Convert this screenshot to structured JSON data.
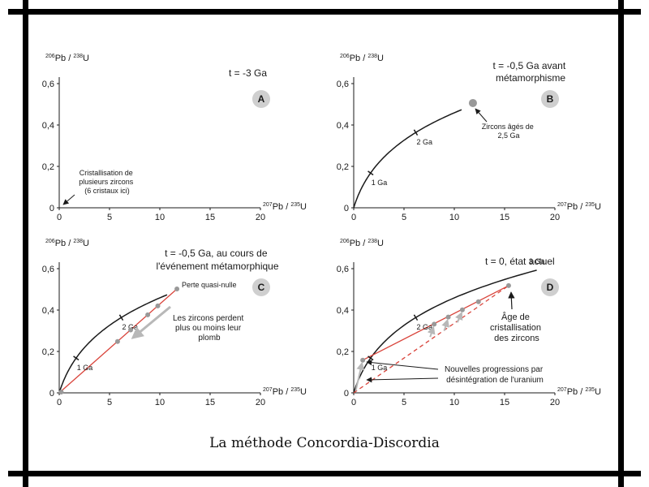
{
  "caption": "La méthode Concordia-Discordia",
  "colors": {
    "concordia": "#1a1a1a",
    "discordia": "#d9443b",
    "zircon": "#999999",
    "arrow": "#b8b8b8",
    "badge": "#cfcfcf"
  },
  "chart_data": [
    {
      "type": "line",
      "panel": "A",
      "title": "t = -3 Ga",
      "ylabel": {
        "sup1": "206",
        "main1": "Pb / ",
        "sup2": "238",
        "main2": "U"
      },
      "xlabel": {
        "sup1": "207",
        "main1": "Pb / ",
        "sup2": "235",
        "main2": "U"
      },
      "xlim": [
        0,
        20
      ],
      "ylim": [
        0,
        0.6
      ],
      "xticks": [
        0,
        5,
        10,
        15,
        20
      ],
      "yticks": [
        0,
        0.2,
        0.4,
        0.6
      ],
      "xtick_labels": [
        "0",
        "5",
        "10",
        "15",
        "20"
      ],
      "ytick_labels": [
        "0",
        "0,2",
        "0,4",
        "0,6"
      ],
      "concordia_max_ga": 0,
      "age_marks": [],
      "points": [],
      "discordia": [],
      "annotations": [
        {
          "lines": [
            "Cristallisation de",
            "plusieurs zircons",
            "(6 cristaux ici)"
          ]
        }
      ]
    },
    {
      "type": "line",
      "panel": "B",
      "title": "t = -0,5 Ga avant",
      "title2": "métamorphisme",
      "ylabel": {
        "sup1": "206",
        "main1": "Pb / ",
        "sup2": "238",
        "main2": "U"
      },
      "xlabel": {
        "sup1": "207",
        "main1": "Pb / ",
        "sup2": "235",
        "main2": "U"
      },
      "xlim": [
        0,
        20
      ],
      "ylim": [
        0,
        0.6
      ],
      "xticks": [
        0,
        5,
        10,
        15,
        20
      ],
      "yticks": [
        0,
        0.2,
        0.4,
        0.6
      ],
      "xtick_labels": [
        "0",
        "5",
        "10",
        "15",
        "20"
      ],
      "ytick_labels": [
        "0",
        "0,2",
        "0,4",
        "0,6"
      ],
      "concordia_max_ga": 2.5,
      "age_marks": [
        {
          "t": 1,
          "label": "1 Ga"
        },
        {
          "t": 2,
          "label": "2 Ga"
        }
      ],
      "points": [
        {
          "x": 11.85,
          "y": 0.506,
          "r": 5
        }
      ],
      "discordia": [],
      "annotations": [
        {
          "lines": [
            "Zircons âgés de",
            "2,5 Ga"
          ]
        }
      ]
    },
    {
      "type": "line",
      "panel": "C",
      "title": "t = -0,5 Ga, au cours de",
      "title2": "l'événement métamorphique",
      "ylabel": {
        "sup1": "206",
        "main1": "Pb / ",
        "sup2": "238",
        "main2": "U"
      },
      "xlabel": {
        "sup1": "207",
        "main1": "Pb / ",
        "sup2": "235",
        "main2": "U"
      },
      "xlim": [
        0,
        20
      ],
      "ylim": [
        0,
        0.6
      ],
      "xticks": [
        0,
        5,
        10,
        15,
        20
      ],
      "yticks": [
        0,
        0.2,
        0.4,
        0.6
      ],
      "xtick_labels": [
        "0",
        "5",
        "10",
        "15",
        "20"
      ],
      "ytick_labels": [
        "0",
        "0,2",
        "0,4",
        "0,6"
      ],
      "concordia_max_ga": 2.5,
      "age_marks": [
        {
          "t": 1,
          "label": "1 Ga"
        },
        {
          "t": 2,
          "label": "2 Ga"
        }
      ],
      "points": [
        {
          "x": 0.2,
          "y": 0.004,
          "r": 3
        },
        {
          "x": 5.8,
          "y": 0.248,
          "r": 3
        },
        {
          "x": 7.1,
          "y": 0.304,
          "r": 3
        },
        {
          "x": 8.8,
          "y": 0.377,
          "r": 3
        },
        {
          "x": 9.8,
          "y": 0.42,
          "r": 3
        },
        {
          "x": 11.7,
          "y": 0.502,
          "r": 3
        }
      ],
      "discordia": [
        {
          "x1": 0,
          "y1": 0,
          "x2": 11.7,
          "y2": 0.502,
          "dash": false
        }
      ],
      "annotations": [
        {
          "lines": [
            "Perte quasi-nulle"
          ]
        },
        {
          "lines": [
            "Les zircons perdent",
            "plus ou moins leur",
            "plomb"
          ]
        }
      ]
    },
    {
      "type": "line",
      "panel": "D",
      "title": "t = 0, état actuel",
      "ylabel": {
        "sup1": "206",
        "main1": "Pb / ",
        "sup2": "238",
        "main2": "U"
      },
      "xlabel": {
        "sup1": "207",
        "main1": "Pb / ",
        "sup2": "235",
        "main2": "U"
      },
      "xlim": [
        0,
        20
      ],
      "ylim": [
        0,
        0.6
      ],
      "xticks": [
        0,
        5,
        10,
        15,
        20
      ],
      "yticks": [
        0,
        0.2,
        0.4,
        0.6
      ],
      "xtick_labels": [
        "0",
        "5",
        "10",
        "15",
        "20"
      ],
      "ytick_labels": [
        "0",
        "0,2",
        "0,4",
        "0,6"
      ],
      "concordia_max_ga": 3,
      "age_marks": [
        {
          "t": 1,
          "label": "1 Ga"
        },
        {
          "t": 2,
          "label": "2 Ga"
        },
        {
          "t": 3,
          "label": "3 Ga"
        }
      ],
      "points": [
        {
          "x": 0.9,
          "y": 0.158,
          "r": 3
        },
        {
          "x": 8.0,
          "y": 0.332,
          "r": 3
        },
        {
          "x": 9.4,
          "y": 0.366,
          "r": 3
        },
        {
          "x": 10.8,
          "y": 0.401,
          "r": 3
        },
        {
          "x": 12.4,
          "y": 0.44,
          "r": 3
        },
        {
          "x": 15.4,
          "y": 0.518,
          "r": 3
        }
      ],
      "discordia": [
        {
          "x1": 0.9,
          "y1": 0.158,
          "x2": 15.4,
          "y2": 0.518,
          "dash": false
        },
        {
          "x1": 0,
          "y1": 0,
          "x2": 15.4,
          "y2": 0.518,
          "dash": true
        }
      ],
      "annotations": [
        {
          "lines": [
            "Âge de",
            "cristallisation",
            "des zircons"
          ]
        },
        {
          "lines": [
            "Nouvelles progressions par",
            "désintégration de l'uranium"
          ]
        }
      ]
    }
  ]
}
